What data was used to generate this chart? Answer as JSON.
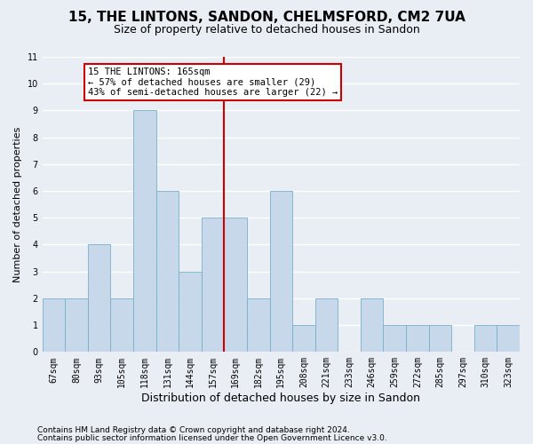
{
  "title1": "15, THE LINTONS, SANDON, CHELMSFORD, CM2 7UA",
  "title2": "Size of property relative to detached houses in Sandon",
  "xlabel": "Distribution of detached houses by size in Sandon",
  "ylabel": "Number of detached properties",
  "categories": [
    "67sqm",
    "80sqm",
    "93sqm",
    "105sqm",
    "118sqm",
    "131sqm",
    "144sqm",
    "157sqm",
    "169sqm",
    "182sqm",
    "195sqm",
    "208sqm",
    "221sqm",
    "233sqm",
    "246sqm",
    "259sqm",
    "272sqm",
    "285sqm",
    "297sqm",
    "310sqm",
    "323sqm"
  ],
  "values": [
    2,
    2,
    4,
    2,
    9,
    6,
    3,
    5,
    5,
    2,
    6,
    1,
    2,
    0,
    2,
    1,
    1,
    1,
    0,
    1,
    1
  ],
  "bar_color": "#c8d8eb",
  "bar_edge_color": "#7aafc8",
  "annotation_text": "15 THE LINTONS: 165sqm\n← 57% of detached houses are smaller (29)\n43% of semi-detached houses are larger (22) →",
  "annotation_box_color": "#ffffff",
  "annotation_box_edge_color": "#cc0000",
  "ylim": [
    0,
    11
  ],
  "yticks": [
    0,
    1,
    2,
    3,
    4,
    5,
    6,
    7,
    8,
    9,
    10,
    11
  ],
  "footer1": "Contains HM Land Registry data © Crown copyright and database right 2024.",
  "footer2": "Contains public sector information licensed under the Open Government Licence v3.0.",
  "bg_color": "#e8eef4",
  "plot_bg_color": "#e8eef4",
  "grid_color": "#ffffff",
  "ref_line_color": "#cc0000",
  "title1_fontsize": 11,
  "title2_fontsize": 9,
  "ylabel_fontsize": 8,
  "xlabel_fontsize": 9,
  "tick_fontsize": 7,
  "footer_fontsize": 6.5
}
